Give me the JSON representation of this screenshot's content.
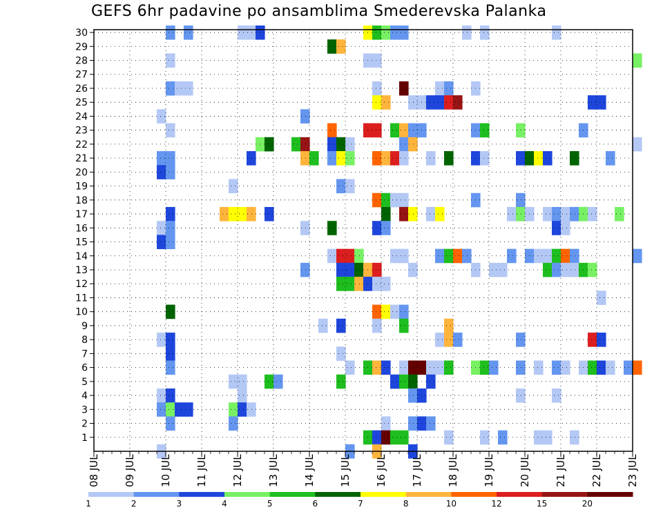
{
  "chart_data": {
    "type": "heatmap",
    "title": "GEFS 6hr padavine po ansamblima Smederevska Palanka",
    "xlabel": "",
    "ylabel": "",
    "x_tick_labels": [
      "08 JUL",
      "09 JUL",
      "10 JUL",
      "11 JUL",
      "12 JUL",
      "13 JUL",
      "14 JUL",
      "15 JUL",
      "16 JUL",
      "17 JUL",
      "18 JUL",
      "19 JUL",
      "20 JUL",
      "21 JUL",
      "22 JUL",
      "23 JUL"
    ],
    "xlim_days": [
      0,
      15
    ],
    "y_tick_labels": [
      1,
      2,
      3,
      4,
      5,
      6,
      7,
      8,
      9,
      10,
      11,
      12,
      13,
      14,
      15,
      16,
      17,
      18,
      19,
      20,
      21,
      22,
      23,
      24,
      25,
      26,
      27,
      28,
      29,
      30
    ],
    "ylim": [
      0,
      30
    ],
    "grid": true,
    "legend": {
      "placement": "bottom",
      "levels": [
        1,
        2,
        3,
        4,
        5,
        6,
        7,
        8,
        10,
        12,
        15,
        20
      ],
      "colors": [
        "#b4c8f5",
        "#6496f0",
        "#1e46dc",
        "#78f064",
        "#1ebe1e",
        "#006400",
        "#ffff00",
        "#ffb43c",
        "#ff6400",
        "#dc1e1e",
        "#961414",
        "#640000"
      ]
    },
    "cells": [
      [
        2,
        30,
        1
      ],
      [
        2.5,
        30,
        1
      ],
      [
        4,
        30,
        0
      ],
      [
        4.25,
        30,
        0
      ],
      [
        4.5,
        30,
        2
      ],
      [
        7.5,
        30,
        6
      ],
      [
        7.75,
        30,
        4
      ],
      [
        8,
        30,
        3
      ],
      [
        8.25,
        30,
        1
      ],
      [
        8.5,
        30,
        1
      ],
      [
        10.25,
        30,
        0
      ],
      [
        10.75,
        30,
        0
      ],
      [
        12.75,
        30,
        0
      ],
      [
        6.5,
        29,
        5
      ],
      [
        6.75,
        29,
        7
      ],
      [
        2,
        28,
        0
      ],
      [
        7.5,
        28,
        0
      ],
      [
        7.75,
        28,
        0
      ],
      [
        15,
        28,
        3
      ],
      [
        2,
        26,
        1
      ],
      [
        2.25,
        26,
        0
      ],
      [
        2.5,
        26,
        0
      ],
      [
        7.75,
        26,
        0
      ],
      [
        8.5,
        26,
        11
      ],
      [
        9.5,
        26,
        0
      ],
      [
        9.75,
        26,
        1
      ],
      [
        10.5,
        26,
        0
      ],
      [
        7.75,
        25,
        6
      ],
      [
        8,
        25,
        7
      ],
      [
        8.75,
        25,
        0
      ],
      [
        9,
        25,
        0
      ],
      [
        9.25,
        25,
        2
      ],
      [
        9.5,
        25,
        2
      ],
      [
        9.75,
        25,
        9
      ],
      [
        10,
        25,
        10
      ],
      [
        13.75,
        25,
        2
      ],
      [
        14,
        25,
        2
      ],
      [
        1.75,
        24,
        0
      ],
      [
        5.75,
        24,
        1
      ],
      [
        2,
        23,
        0
      ],
      [
        6.5,
        23,
        8
      ],
      [
        7.5,
        23,
        9
      ],
      [
        7.75,
        23,
        9
      ],
      [
        8.25,
        23,
        4
      ],
      [
        8.5,
        23,
        7
      ],
      [
        8.75,
        23,
        1
      ],
      [
        9,
        23,
        1
      ],
      [
        10.5,
        23,
        1
      ],
      [
        10.75,
        23,
        4
      ],
      [
        11.75,
        23,
        3
      ],
      [
        13.5,
        23,
        1
      ],
      [
        4.5,
        22,
        3
      ],
      [
        4.75,
        22,
        5
      ],
      [
        5.5,
        22,
        4
      ],
      [
        5.75,
        22,
        10
      ],
      [
        6.5,
        22,
        2
      ],
      [
        6.75,
        22,
        5
      ],
      [
        7,
        22,
        0
      ],
      [
        8.5,
        22,
        1
      ],
      [
        8.75,
        22,
        7
      ],
      [
        15,
        22,
        0
      ],
      [
        1.75,
        21,
        1
      ],
      [
        2,
        21,
        1
      ],
      [
        4.25,
        21,
        2
      ],
      [
        5.75,
        21,
        7
      ],
      [
        6,
        21,
        4
      ],
      [
        6.5,
        21,
        1
      ],
      [
        6.75,
        21,
        6
      ],
      [
        7,
        21,
        3
      ],
      [
        7.75,
        21,
        8
      ],
      [
        8,
        21,
        7
      ],
      [
        8.25,
        21,
        9
      ],
      [
        8.5,
        21,
        0
      ],
      [
        9.25,
        21,
        0
      ],
      [
        9.75,
        21,
        5
      ],
      [
        10.5,
        21,
        2
      ],
      [
        10.75,
        21,
        0
      ],
      [
        11.75,
        21,
        2
      ],
      [
        12,
        21,
        5
      ],
      [
        12.25,
        21,
        6
      ],
      [
        12.5,
        21,
        2
      ],
      [
        13.25,
        21,
        5
      ],
      [
        14.25,
        21,
        1
      ],
      [
        1.75,
        20,
        2
      ],
      [
        2,
        20,
        1
      ],
      [
        3.75,
        19,
        0
      ],
      [
        6.75,
        19,
        1
      ],
      [
        7,
        19,
        0
      ],
      [
        7.75,
        18,
        8
      ],
      [
        8,
        18,
        4
      ],
      [
        8.25,
        18,
        0
      ],
      [
        8.5,
        18,
        0
      ],
      [
        10.5,
        18,
        1
      ],
      [
        11.75,
        18,
        1
      ],
      [
        3.5,
        17,
        7
      ],
      [
        3.75,
        17,
        6
      ],
      [
        4,
        17,
        6
      ],
      [
        4.25,
        17,
        7
      ],
      [
        4.75,
        17,
        2
      ],
      [
        2,
        17,
        2
      ],
      [
        8,
        17,
        5
      ],
      [
        8.5,
        17,
        10
      ],
      [
        8.75,
        17,
        6
      ],
      [
        9.25,
        17,
        0
      ],
      [
        9.5,
        17,
        6
      ],
      [
        11.5,
        17,
        0
      ],
      [
        11.75,
        17,
        3
      ],
      [
        12,
        17,
        0
      ],
      [
        12.5,
        17,
        0
      ],
      [
        12.75,
        17,
        1
      ],
      [
        13,
        17,
        0
      ],
      [
        13.25,
        17,
        1
      ],
      [
        13.5,
        17,
        3
      ],
      [
        13.75,
        17,
        0
      ],
      [
        14.5,
        17,
        3
      ],
      [
        1.75,
        16,
        0
      ],
      [
        2,
        16,
        1
      ],
      [
        5.75,
        16,
        0
      ],
      [
        6.5,
        16,
        5
      ],
      [
        7.75,
        16,
        2
      ],
      [
        8,
        16,
        1
      ],
      [
        12.75,
        16,
        2
      ],
      [
        13,
        16,
        0
      ],
      [
        1.75,
        15,
        2
      ],
      [
        2,
        15,
        1
      ],
      [
        6.5,
        14,
        0
      ],
      [
        6.75,
        14,
        9
      ],
      [
        7,
        14,
        9
      ],
      [
        7.25,
        14,
        3
      ],
      [
        8.25,
        14,
        0
      ],
      [
        8.5,
        14,
        0
      ],
      [
        9.5,
        14,
        1
      ],
      [
        9.75,
        14,
        4
      ],
      [
        10,
        14,
        8
      ],
      [
        10.25,
        14,
        1
      ],
      [
        11.5,
        14,
        1
      ],
      [
        12,
        14,
        1
      ],
      [
        12.25,
        14,
        0
      ],
      [
        12.5,
        14,
        0
      ],
      [
        12.75,
        14,
        4
      ],
      [
        13,
        14,
        8
      ],
      [
        13.25,
        14,
        1
      ],
      [
        15,
        14,
        1
      ],
      [
        5.75,
        13,
        1
      ],
      [
        6.75,
        13,
        2
      ],
      [
        7,
        13,
        2
      ],
      [
        7.25,
        13,
        5
      ],
      [
        7.5,
        13,
        7
      ],
      [
        7.75,
        13,
        9
      ],
      [
        8.75,
        13,
        0
      ],
      [
        10.5,
        13,
        0
      ],
      [
        11,
        13,
        0
      ],
      [
        11.25,
        13,
        0
      ],
      [
        12.5,
        13,
        4
      ],
      [
        12.75,
        13,
        1
      ],
      [
        13,
        13,
        0
      ],
      [
        13.25,
        13,
        0
      ],
      [
        13.5,
        13,
        4
      ],
      [
        13.75,
        13,
        3
      ],
      [
        6.75,
        12,
        4
      ],
      [
        7,
        12,
        4
      ],
      [
        7.25,
        12,
        7
      ],
      [
        7.5,
        12,
        2
      ],
      [
        7.75,
        12,
        0
      ],
      [
        8,
        12,
        0
      ],
      [
        14,
        11,
        0
      ],
      [
        2,
        10,
        5
      ],
      [
        7.75,
        10,
        8
      ],
      [
        8,
        10,
        6
      ],
      [
        8.25,
        10,
        0
      ],
      [
        8.5,
        10,
        1
      ],
      [
        6.25,
        9,
        0
      ],
      [
        6.75,
        9,
        2
      ],
      [
        7.75,
        9,
        0
      ],
      [
        8.5,
        9,
        4
      ],
      [
        9.75,
        9,
        7
      ],
      [
        1.75,
        8,
        0
      ],
      [
        2,
        8,
        2
      ],
      [
        9.5,
        8,
        0
      ],
      [
        9.75,
        8,
        7
      ],
      [
        10,
        8,
        1
      ],
      [
        11.75,
        8,
        1
      ],
      [
        13.75,
        8,
        9
      ],
      [
        14,
        8,
        2
      ],
      [
        2,
        7,
        2
      ],
      [
        6.75,
        7,
        0
      ],
      [
        2,
        6,
        1
      ],
      [
        7,
        6,
        0
      ],
      [
        7.5,
        6,
        4
      ],
      [
        7.75,
        6,
        7
      ],
      [
        8,
        6,
        2
      ],
      [
        8.5,
        6,
        0
      ],
      [
        8.75,
        6,
        11
      ],
      [
        9,
        6,
        11
      ],
      [
        9.25,
        6,
        0
      ],
      [
        9.5,
        6,
        0
      ],
      [
        9.75,
        6,
        4
      ],
      [
        10.5,
        6,
        3
      ],
      [
        10.75,
        6,
        4
      ],
      [
        11,
        6,
        1
      ],
      [
        11.75,
        6,
        1
      ],
      [
        12.25,
        6,
        0
      ],
      [
        12.75,
        6,
        1
      ],
      [
        13,
        6,
        0
      ],
      [
        13.5,
        6,
        0
      ],
      [
        13.75,
        6,
        4
      ],
      [
        14,
        6,
        2
      ],
      [
        14.25,
        6,
        0
      ],
      [
        14.75,
        6,
        1
      ],
      [
        15,
        6,
        8
      ],
      [
        3.75,
        5,
        0
      ],
      [
        4,
        5,
        0
      ],
      [
        4.75,
        5,
        4
      ],
      [
        5,
        5,
        1
      ],
      [
        6.75,
        5,
        4
      ],
      [
        8.25,
        5,
        2
      ],
      [
        8.5,
        5,
        4
      ],
      [
        8.75,
        5,
        5
      ],
      [
        9.25,
        5,
        2
      ],
      [
        1.75,
        4,
        0
      ],
      [
        2,
        4,
        2
      ],
      [
        4,
        4,
        0
      ],
      [
        8.75,
        4,
        1
      ],
      [
        9,
        4,
        2
      ],
      [
        11.75,
        4,
        0
      ],
      [
        12.75,
        4,
        0
      ],
      [
        1.75,
        3,
        1
      ],
      [
        2,
        3,
        3
      ],
      [
        2.25,
        3,
        2
      ],
      [
        2.5,
        3,
        2
      ],
      [
        3.75,
        3,
        3
      ],
      [
        4,
        3,
        2
      ],
      [
        4.25,
        3,
        0
      ],
      [
        2,
        2,
        1
      ],
      [
        3.75,
        2,
        1
      ],
      [
        8,
        2,
        0
      ],
      [
        8.75,
        2,
        1
      ],
      [
        9,
        2,
        2
      ],
      [
        9.25,
        2,
        1
      ],
      [
        7.5,
        1,
        4
      ],
      [
        7.75,
        1,
        2
      ],
      [
        8,
        1,
        11
      ],
      [
        8.25,
        1,
        4
      ],
      [
        8.5,
        1,
        4
      ],
      [
        9.75,
        1,
        0
      ],
      [
        10.75,
        1,
        0
      ],
      [
        11.25,
        1,
        1
      ],
      [
        12.25,
        1,
        0
      ],
      [
        12.5,
        1,
        0
      ],
      [
        13.25,
        1,
        0
      ],
      [
        1.75,
        0,
        0
      ],
      [
        7,
        0,
        1
      ],
      [
        7.75,
        0,
        7
      ],
      [
        8.75,
        0,
        2
      ]
    ]
  }
}
